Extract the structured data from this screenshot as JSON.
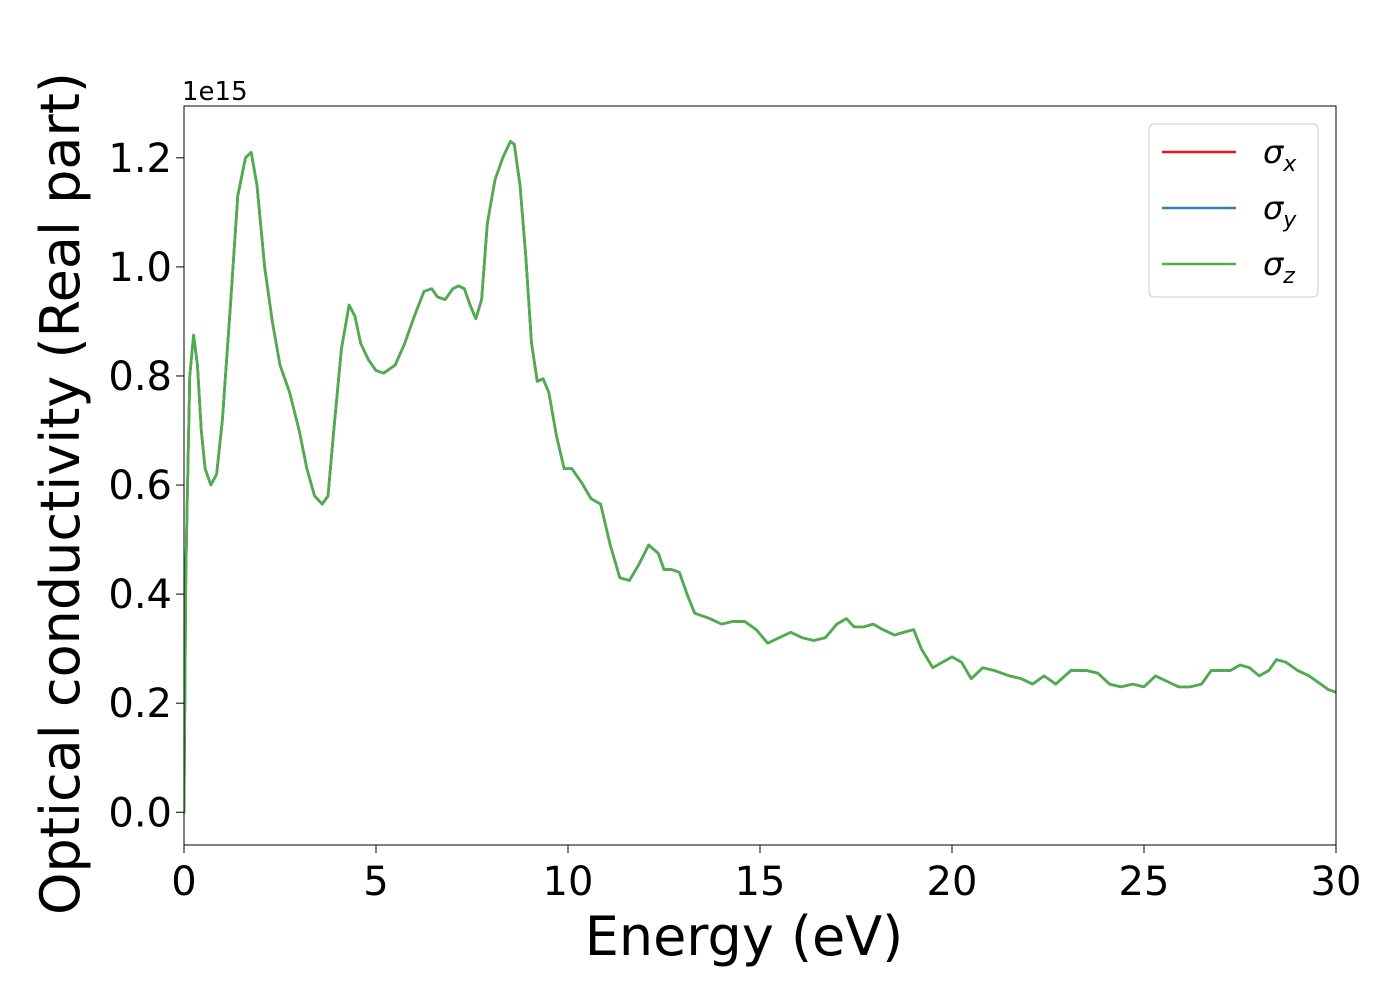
{
  "chart_data": {
    "type": "line",
    "xlabel": "Energy (eV)",
    "ylabel": "Optical conductivity (Real part)",
    "y_offset_text": "1e15",
    "y_multiplier": 1000000000000000.0,
    "xlim": [
      0,
      30
    ],
    "ylim": [
      -0.06,
      1.295
    ],
    "x_ticks": [
      0,
      5,
      10,
      15,
      20,
      25,
      30
    ],
    "x_tick_labels": [
      "0",
      "5",
      "10",
      "15",
      "20",
      "25",
      "30"
    ],
    "y_ticks": [
      0.0,
      0.2,
      0.4,
      0.6,
      0.8,
      1.0,
      1.2
    ],
    "y_tick_labels": [
      "0.0",
      "0.2",
      "0.4",
      "0.6",
      "0.8",
      "1.0",
      "1.2"
    ],
    "grid": false,
    "legend_position": "top-right",
    "x": [
      0,
      0.05,
      0.15,
      0.25,
      0.35,
      0.45,
      0.55,
      0.7,
      0.85,
      1.0,
      1.2,
      1.4,
      1.6,
      1.75,
      1.9,
      2.1,
      2.3,
      2.5,
      2.75,
      3.0,
      3.2,
      3.4,
      3.6,
      3.75,
      3.9,
      4.1,
      4.3,
      4.45,
      4.6,
      4.8,
      5.0,
      5.2,
      5.5,
      5.75,
      6.0,
      6.25,
      6.45,
      6.6,
      6.8,
      7.0,
      7.15,
      7.3,
      7.45,
      7.6,
      7.75,
      7.9,
      8.1,
      8.3,
      8.5,
      8.6,
      8.75,
      8.9,
      9.05,
      9.2,
      9.35,
      9.5,
      9.7,
      9.9,
      10.1,
      10.35,
      10.6,
      10.85,
      11.1,
      11.35,
      11.6,
      11.85,
      12.1,
      12.35,
      12.5,
      12.7,
      12.9,
      13.1,
      13.3,
      13.5,
      13.7,
      14.0,
      14.3,
      14.6,
      14.9,
      15.2,
      15.5,
      15.8,
      16.1,
      16.4,
      16.7,
      17.0,
      17.25,
      17.45,
      17.7,
      17.95,
      18.2,
      18.5,
      18.75,
      19.0,
      19.2,
      19.5,
      19.75,
      20.0,
      20.25,
      20.5,
      20.8,
      21.1,
      21.5,
      21.8,
      22.1,
      22.4,
      22.7,
      23.1,
      23.5,
      23.8,
      24.1,
      24.4,
      24.7,
      25.0,
      25.3,
      25.6,
      25.9,
      26.2,
      26.5,
      26.75,
      27.0,
      27.25,
      27.5,
      27.75,
      28.0,
      28.25,
      28.45,
      28.7,
      29.0,
      29.3,
      29.6,
      29.8,
      30.0
    ],
    "series": [
      {
        "name": "σx",
        "color": "#e41a1c",
        "values": [
          0.0,
          0.45,
          0.8,
          0.875,
          0.82,
          0.7,
          0.63,
          0.6,
          0.62,
          0.72,
          0.92,
          1.13,
          1.2,
          1.21,
          1.15,
          1.0,
          0.9,
          0.82,
          0.77,
          0.7,
          0.63,
          0.58,
          0.565,
          0.58,
          0.7,
          0.85,
          0.93,
          0.91,
          0.86,
          0.83,
          0.81,
          0.805,
          0.82,
          0.86,
          0.91,
          0.955,
          0.96,
          0.945,
          0.94,
          0.96,
          0.965,
          0.96,
          0.93,
          0.905,
          0.94,
          1.08,
          1.16,
          1.2,
          1.23,
          1.225,
          1.15,
          1.02,
          0.86,
          0.79,
          0.795,
          0.77,
          0.69,
          0.63,
          0.63,
          0.605,
          0.575,
          0.565,
          0.49,
          0.43,
          0.425,
          0.455,
          0.49,
          0.475,
          0.445,
          0.445,
          0.44,
          0.4,
          0.365,
          0.36,
          0.355,
          0.345,
          0.35,
          0.35,
          0.335,
          0.31,
          0.32,
          0.33,
          0.32,
          0.315,
          0.32,
          0.345,
          0.355,
          0.34,
          0.34,
          0.345,
          0.335,
          0.325,
          0.33,
          0.335,
          0.3,
          0.265,
          0.275,
          0.285,
          0.275,
          0.245,
          0.265,
          0.26,
          0.25,
          0.245,
          0.235,
          0.25,
          0.235,
          0.26,
          0.26,
          0.255,
          0.235,
          0.23,
          0.235,
          0.23,
          0.25,
          0.24,
          0.23,
          0.23,
          0.235,
          0.26,
          0.26,
          0.26,
          0.27,
          0.265,
          0.25,
          0.26,
          0.28,
          0.275,
          0.26,
          0.25,
          0.235,
          0.225,
          0.22
        ]
      },
      {
        "name": "σy",
        "color": "#377eb8",
        "values": [
          0.0,
          0.45,
          0.8,
          0.875,
          0.82,
          0.7,
          0.63,
          0.6,
          0.62,
          0.72,
          0.92,
          1.13,
          1.2,
          1.21,
          1.15,
          1.0,
          0.9,
          0.82,
          0.77,
          0.7,
          0.63,
          0.58,
          0.565,
          0.58,
          0.7,
          0.85,
          0.93,
          0.91,
          0.86,
          0.83,
          0.81,
          0.805,
          0.82,
          0.86,
          0.91,
          0.955,
          0.96,
          0.945,
          0.94,
          0.96,
          0.965,
          0.96,
          0.93,
          0.905,
          0.94,
          1.08,
          1.16,
          1.2,
          1.23,
          1.225,
          1.15,
          1.02,
          0.86,
          0.79,
          0.795,
          0.77,
          0.69,
          0.63,
          0.63,
          0.605,
          0.575,
          0.565,
          0.49,
          0.43,
          0.425,
          0.455,
          0.49,
          0.475,
          0.445,
          0.445,
          0.44,
          0.4,
          0.365,
          0.36,
          0.355,
          0.345,
          0.35,
          0.35,
          0.335,
          0.31,
          0.32,
          0.33,
          0.32,
          0.315,
          0.32,
          0.345,
          0.355,
          0.34,
          0.34,
          0.345,
          0.335,
          0.325,
          0.33,
          0.335,
          0.3,
          0.265,
          0.275,
          0.285,
          0.275,
          0.245,
          0.265,
          0.26,
          0.25,
          0.245,
          0.235,
          0.25,
          0.235,
          0.26,
          0.26,
          0.255,
          0.235,
          0.23,
          0.235,
          0.23,
          0.25,
          0.24,
          0.23,
          0.23,
          0.235,
          0.26,
          0.26,
          0.26,
          0.27,
          0.265,
          0.25,
          0.26,
          0.28,
          0.275,
          0.26,
          0.25,
          0.235,
          0.225,
          0.22
        ]
      },
      {
        "name": "σz",
        "color": "#4daf4a",
        "values": [
          0.0,
          0.45,
          0.8,
          0.875,
          0.82,
          0.7,
          0.63,
          0.6,
          0.62,
          0.72,
          0.92,
          1.13,
          1.2,
          1.21,
          1.15,
          1.0,
          0.9,
          0.82,
          0.77,
          0.7,
          0.63,
          0.58,
          0.565,
          0.58,
          0.7,
          0.85,
          0.93,
          0.91,
          0.86,
          0.83,
          0.81,
          0.805,
          0.82,
          0.86,
          0.91,
          0.955,
          0.96,
          0.945,
          0.94,
          0.96,
          0.965,
          0.96,
          0.93,
          0.905,
          0.94,
          1.08,
          1.16,
          1.2,
          1.23,
          1.225,
          1.15,
          1.02,
          0.86,
          0.79,
          0.795,
          0.77,
          0.69,
          0.63,
          0.63,
          0.605,
          0.575,
          0.565,
          0.49,
          0.43,
          0.425,
          0.455,
          0.49,
          0.475,
          0.445,
          0.445,
          0.44,
          0.4,
          0.365,
          0.36,
          0.355,
          0.345,
          0.35,
          0.35,
          0.335,
          0.31,
          0.32,
          0.33,
          0.32,
          0.315,
          0.32,
          0.345,
          0.355,
          0.34,
          0.34,
          0.345,
          0.335,
          0.325,
          0.33,
          0.335,
          0.3,
          0.265,
          0.275,
          0.285,
          0.275,
          0.245,
          0.265,
          0.26,
          0.25,
          0.245,
          0.235,
          0.25,
          0.235,
          0.26,
          0.26,
          0.255,
          0.235,
          0.23,
          0.235,
          0.23,
          0.25,
          0.24,
          0.23,
          0.23,
          0.235,
          0.26,
          0.26,
          0.26,
          0.27,
          0.265,
          0.25,
          0.26,
          0.28,
          0.275,
          0.26,
          0.25,
          0.235,
          0.225,
          0.22
        ]
      }
    ],
    "legend": [
      {
        "symbol": "σ",
        "sub": "x",
        "color": "#e41a1c"
      },
      {
        "symbol": "σ",
        "sub": "y",
        "color": "#377eb8"
      },
      {
        "symbol": "σ",
        "sub": "z",
        "color": "#4daf4a"
      }
    ]
  }
}
